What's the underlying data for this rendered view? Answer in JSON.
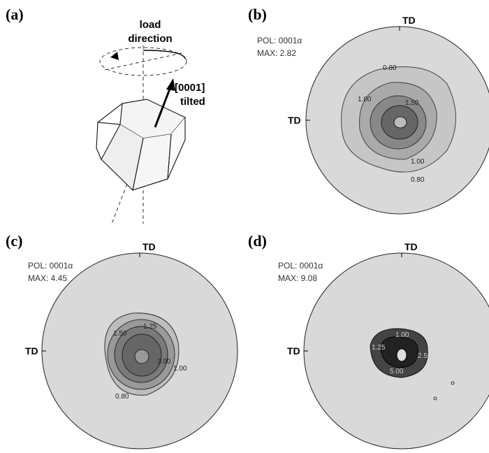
{
  "panels": [
    {
      "label": "(a)",
      "load": "load",
      "direction": "direction",
      "axis": "[0001]",
      "tilted": "tilted"
    },
    {
      "label": "(b)",
      "td_top": "TD",
      "td_left": "TD",
      "pol": "POL: 0001α",
      "max": "MAX: 2.82",
      "contour_labels": [
        "0.80",
        "1.00",
        "1.50",
        "1.00",
        "0.80"
      ]
    },
    {
      "label": "(c)",
      "td_top": "TD",
      "td_left": "TD",
      "pol": "POL: 0001α",
      "max": "MAX: 4.45",
      "contour_labels": [
        "1.50",
        "1.25",
        "3.00",
        "1.00",
        "0.80"
      ]
    },
    {
      "label": "(d)",
      "td_top": "TD",
      "td_left": "TD",
      "pol": "POL: 0001α",
      "max": "MAX: 9.08",
      "contour_labels": [
        "1.25",
        "1.00",
        "2.50",
        "5.00"
      ]
    }
  ]
}
